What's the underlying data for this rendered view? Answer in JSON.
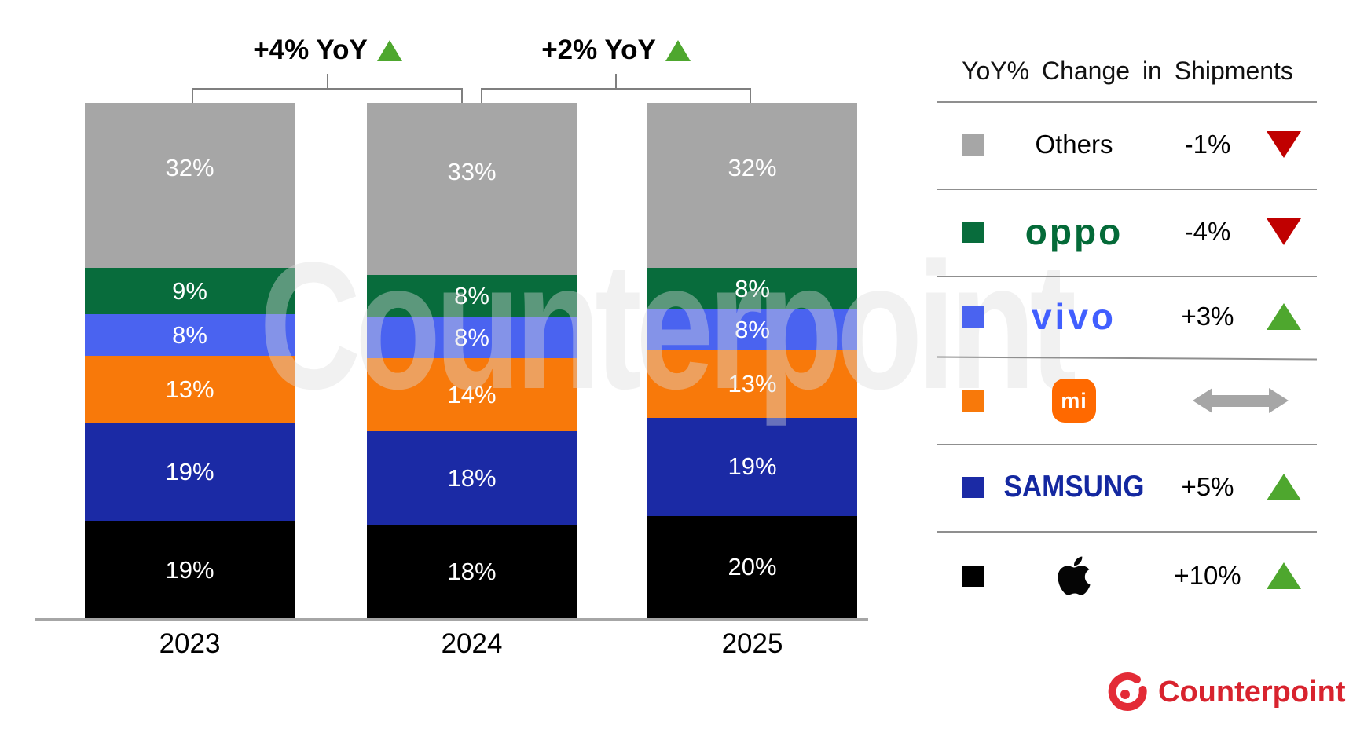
{
  "watermark": "Counterpoint",
  "chart_data": {
    "type": "bar",
    "stacked": true,
    "title": "",
    "categories": [
      "2023",
      "2024",
      "2025"
    ],
    "series": [
      {
        "name": "Apple",
        "color": "#000000",
        "values": [
          19,
          18,
          20
        ]
      },
      {
        "name": "Samsung",
        "color": "#1b2aa5",
        "values": [
          19,
          18,
          19
        ]
      },
      {
        "name": "Xiaomi",
        "color": "#f8790a",
        "values": [
          13,
          14,
          13
        ]
      },
      {
        "name": "vivo",
        "color": "#4a63f0",
        "values": [
          8,
          8,
          8
        ]
      },
      {
        "name": "OPPO",
        "color": "#086c3c",
        "values": [
          9,
          8,
          8
        ]
      },
      {
        "name": "Others",
        "color": "#a6a6a6",
        "values": [
          32,
          33,
          32
        ]
      }
    ],
    "value_suffix": "%",
    "annotations": [
      {
        "label": "+4% YoY",
        "direction": "up",
        "between": [
          "2023",
          "2024"
        ]
      },
      {
        "label": "+2% YoY",
        "direction": "up",
        "between": [
          "2024",
          "2025"
        ]
      }
    ],
    "legend_position": "right",
    "grid": false
  },
  "legend": {
    "title": "YoY% Change in Shipments",
    "rows": [
      {
        "brand": "Others",
        "logo": "text",
        "logo_text": "Others",
        "swatch": "#a6a6a6",
        "change": "-1%",
        "direction": "down"
      },
      {
        "brand": "OPPO",
        "logo": "oppo",
        "logo_text": "oppo",
        "swatch": "#086c3c",
        "change": "-4%",
        "direction": "down"
      },
      {
        "brand": "vivo",
        "logo": "vivo",
        "logo_text": "vivo",
        "swatch": "#4a63f0",
        "change": "+3%",
        "direction": "up"
      },
      {
        "brand": "Xiaomi",
        "logo": "mi",
        "logo_text": "mi",
        "swatch": "#f8790a",
        "change": "",
        "direction": "flat"
      },
      {
        "brand": "SAMSUNG",
        "logo": "samsung",
        "logo_text": "SAMSUNG",
        "swatch": "#1b2aa5",
        "change": "+5%",
        "direction": "up"
      },
      {
        "brand": "Apple",
        "logo": "apple",
        "logo_text": "",
        "swatch": "#000000",
        "change": "+10%",
        "direction": "up"
      }
    ]
  },
  "colors": {
    "up": "#4ea72e",
    "down": "#c00000",
    "flat": "#a6a6a6",
    "axis": "#a6a6a6",
    "bracket": "#7f7f7f",
    "counterpoint_red": "#d8232e"
  },
  "footer": {
    "brand": "Counterpoint"
  }
}
